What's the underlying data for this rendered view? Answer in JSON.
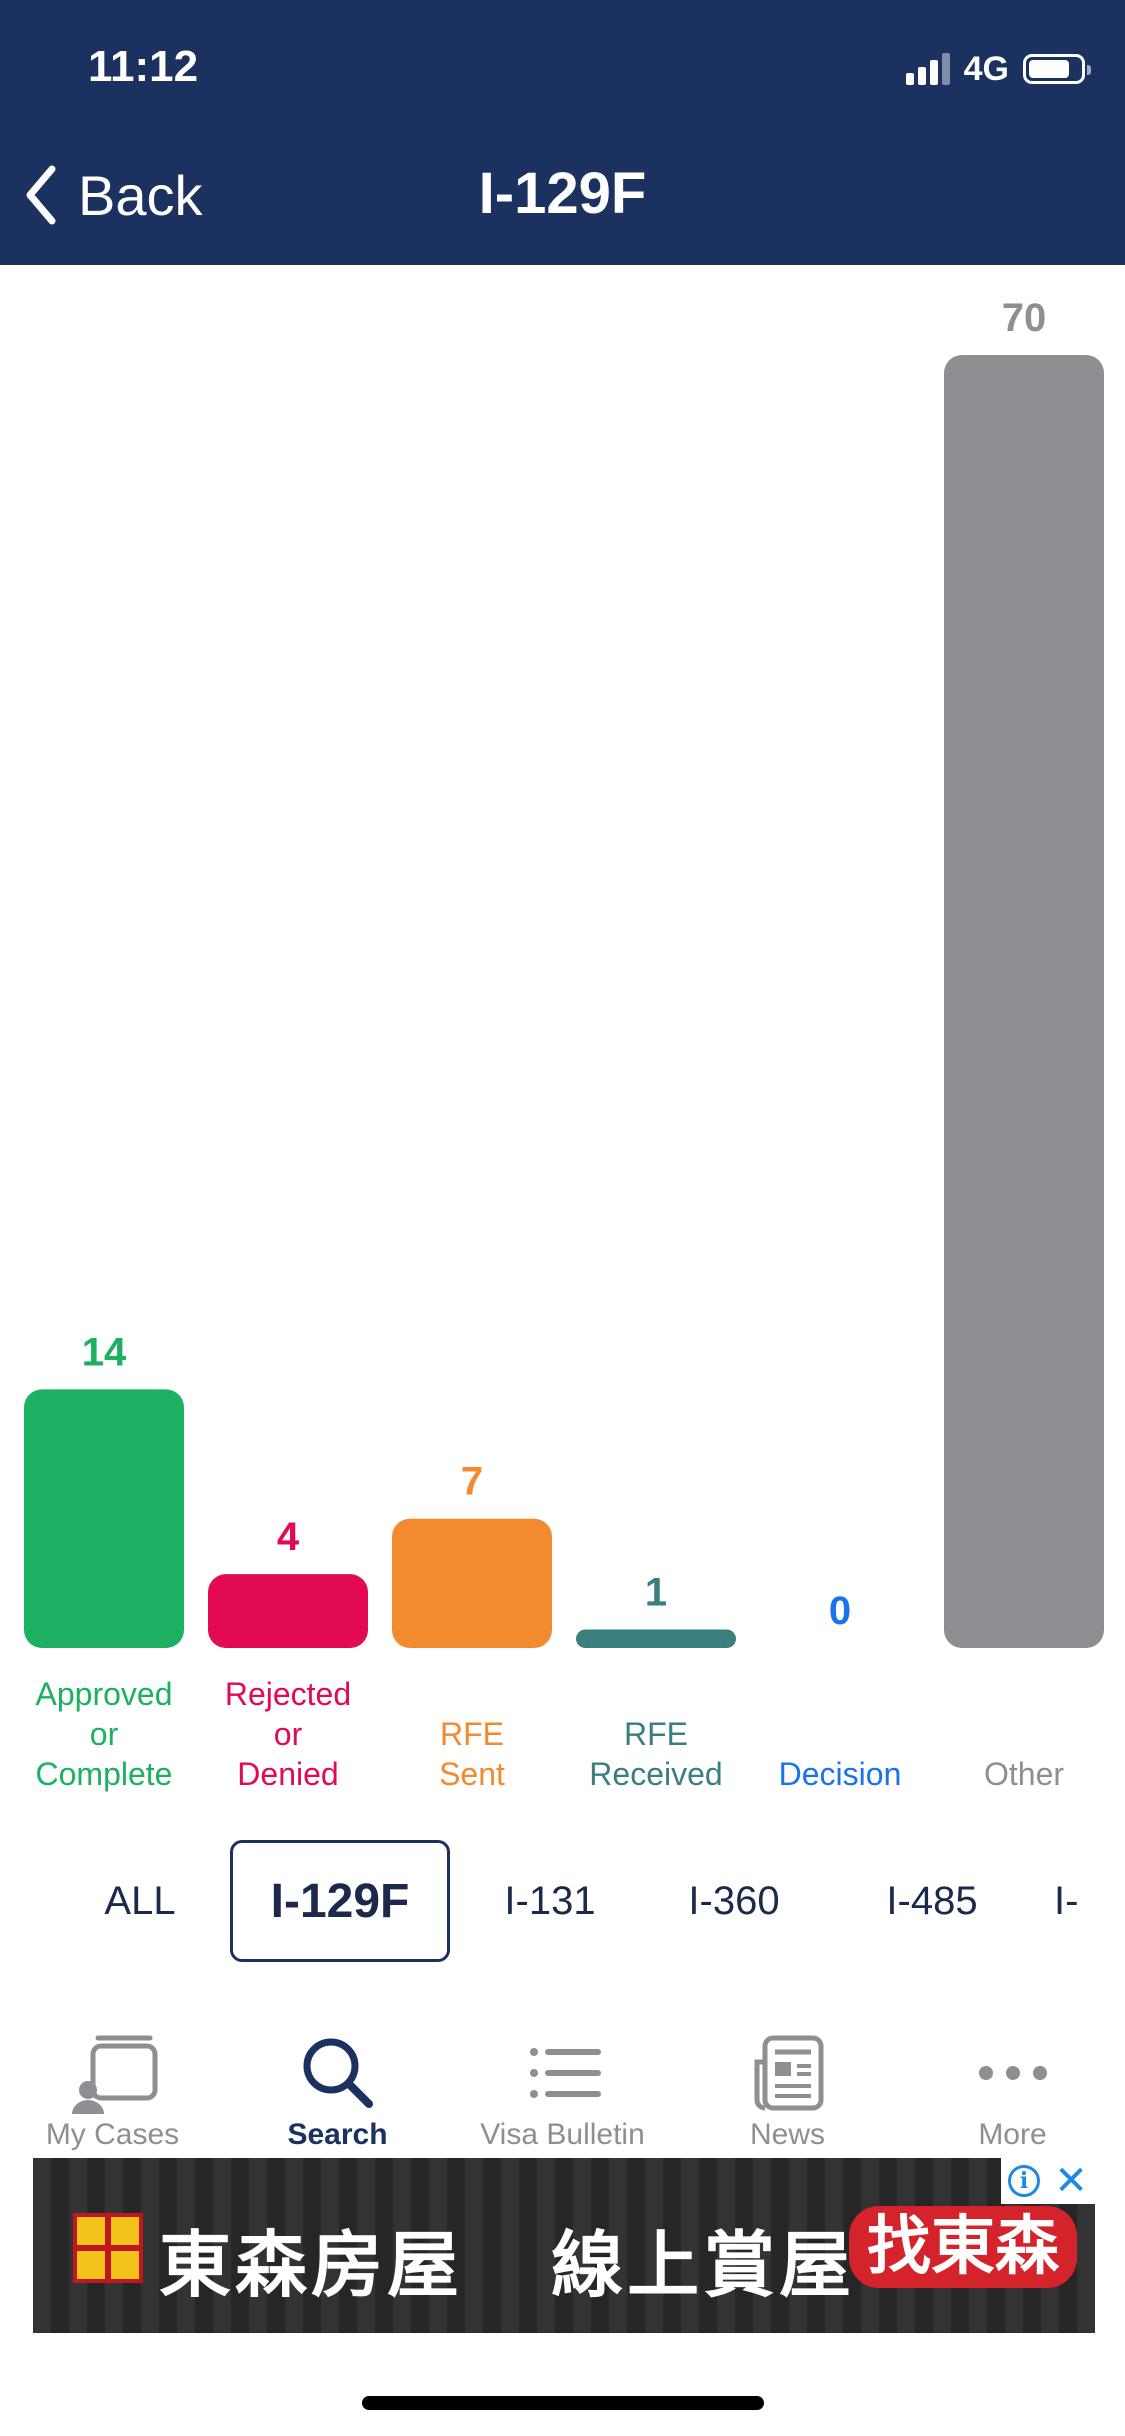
{
  "status_bar": {
    "time": "11:12",
    "network": "4G"
  },
  "nav": {
    "back_label": "Back",
    "title": "I-129F"
  },
  "chart_data": {
    "type": "bar",
    "categories": [
      [
        "Approved",
        "or",
        "Complete"
      ],
      [
        "Rejected",
        "or",
        "Denied"
      ],
      [
        "RFE",
        "Sent"
      ],
      [
        "RFE",
        "Received"
      ],
      [
        "Decision"
      ],
      [
        "Other"
      ]
    ],
    "values": [
      14,
      4,
      7,
      1,
      0,
      70
    ],
    "colors": [
      "#1eb062",
      "#e20a52",
      "#f28a30",
      "#3a7f7d",
      "#1a73e8",
      "#8e8e93"
    ],
    "value_label_colors": [
      "#1eb062",
      "#e20a52",
      "#f28a30",
      "#3a7f7d",
      "#1a73e8",
      "#8e8e93"
    ],
    "category_label_colors": [
      "#1eb062",
      "#e20a52",
      "#f28a30",
      "#3a7f7d",
      "#1a73e8",
      "#8e8e93"
    ],
    "ylim": [
      0,
      70
    ],
    "grid": false,
    "title": "",
    "xlabel": "",
    "ylabel": ""
  },
  "form_tabs": [
    {
      "label": "ALL"
    },
    {
      "label": "I-129F",
      "selected": true
    },
    {
      "label": "I-131"
    },
    {
      "label": "I-360"
    },
    {
      "label": "I-485"
    },
    {
      "label": "I-"
    }
  ],
  "tabbar": [
    {
      "label": "My Cases",
      "icon": "my-cases-icon"
    },
    {
      "label": "Search",
      "icon": "search-icon",
      "active": true
    },
    {
      "label": "Visa Bulletin",
      "icon": "list-icon"
    },
    {
      "label": "News",
      "icon": "newspaper-icon"
    },
    {
      "label": "More",
      "icon": "more-dots-icon"
    }
  ],
  "ad": {
    "brand_text": "東森房屋",
    "headline": "線上賞屋",
    "cta": "找東森",
    "info": "i",
    "close": "✕"
  },
  "colors": {
    "header": "#1b3160",
    "tab_active": "#1b3160",
    "tab_inactive": "#8e8e93"
  }
}
